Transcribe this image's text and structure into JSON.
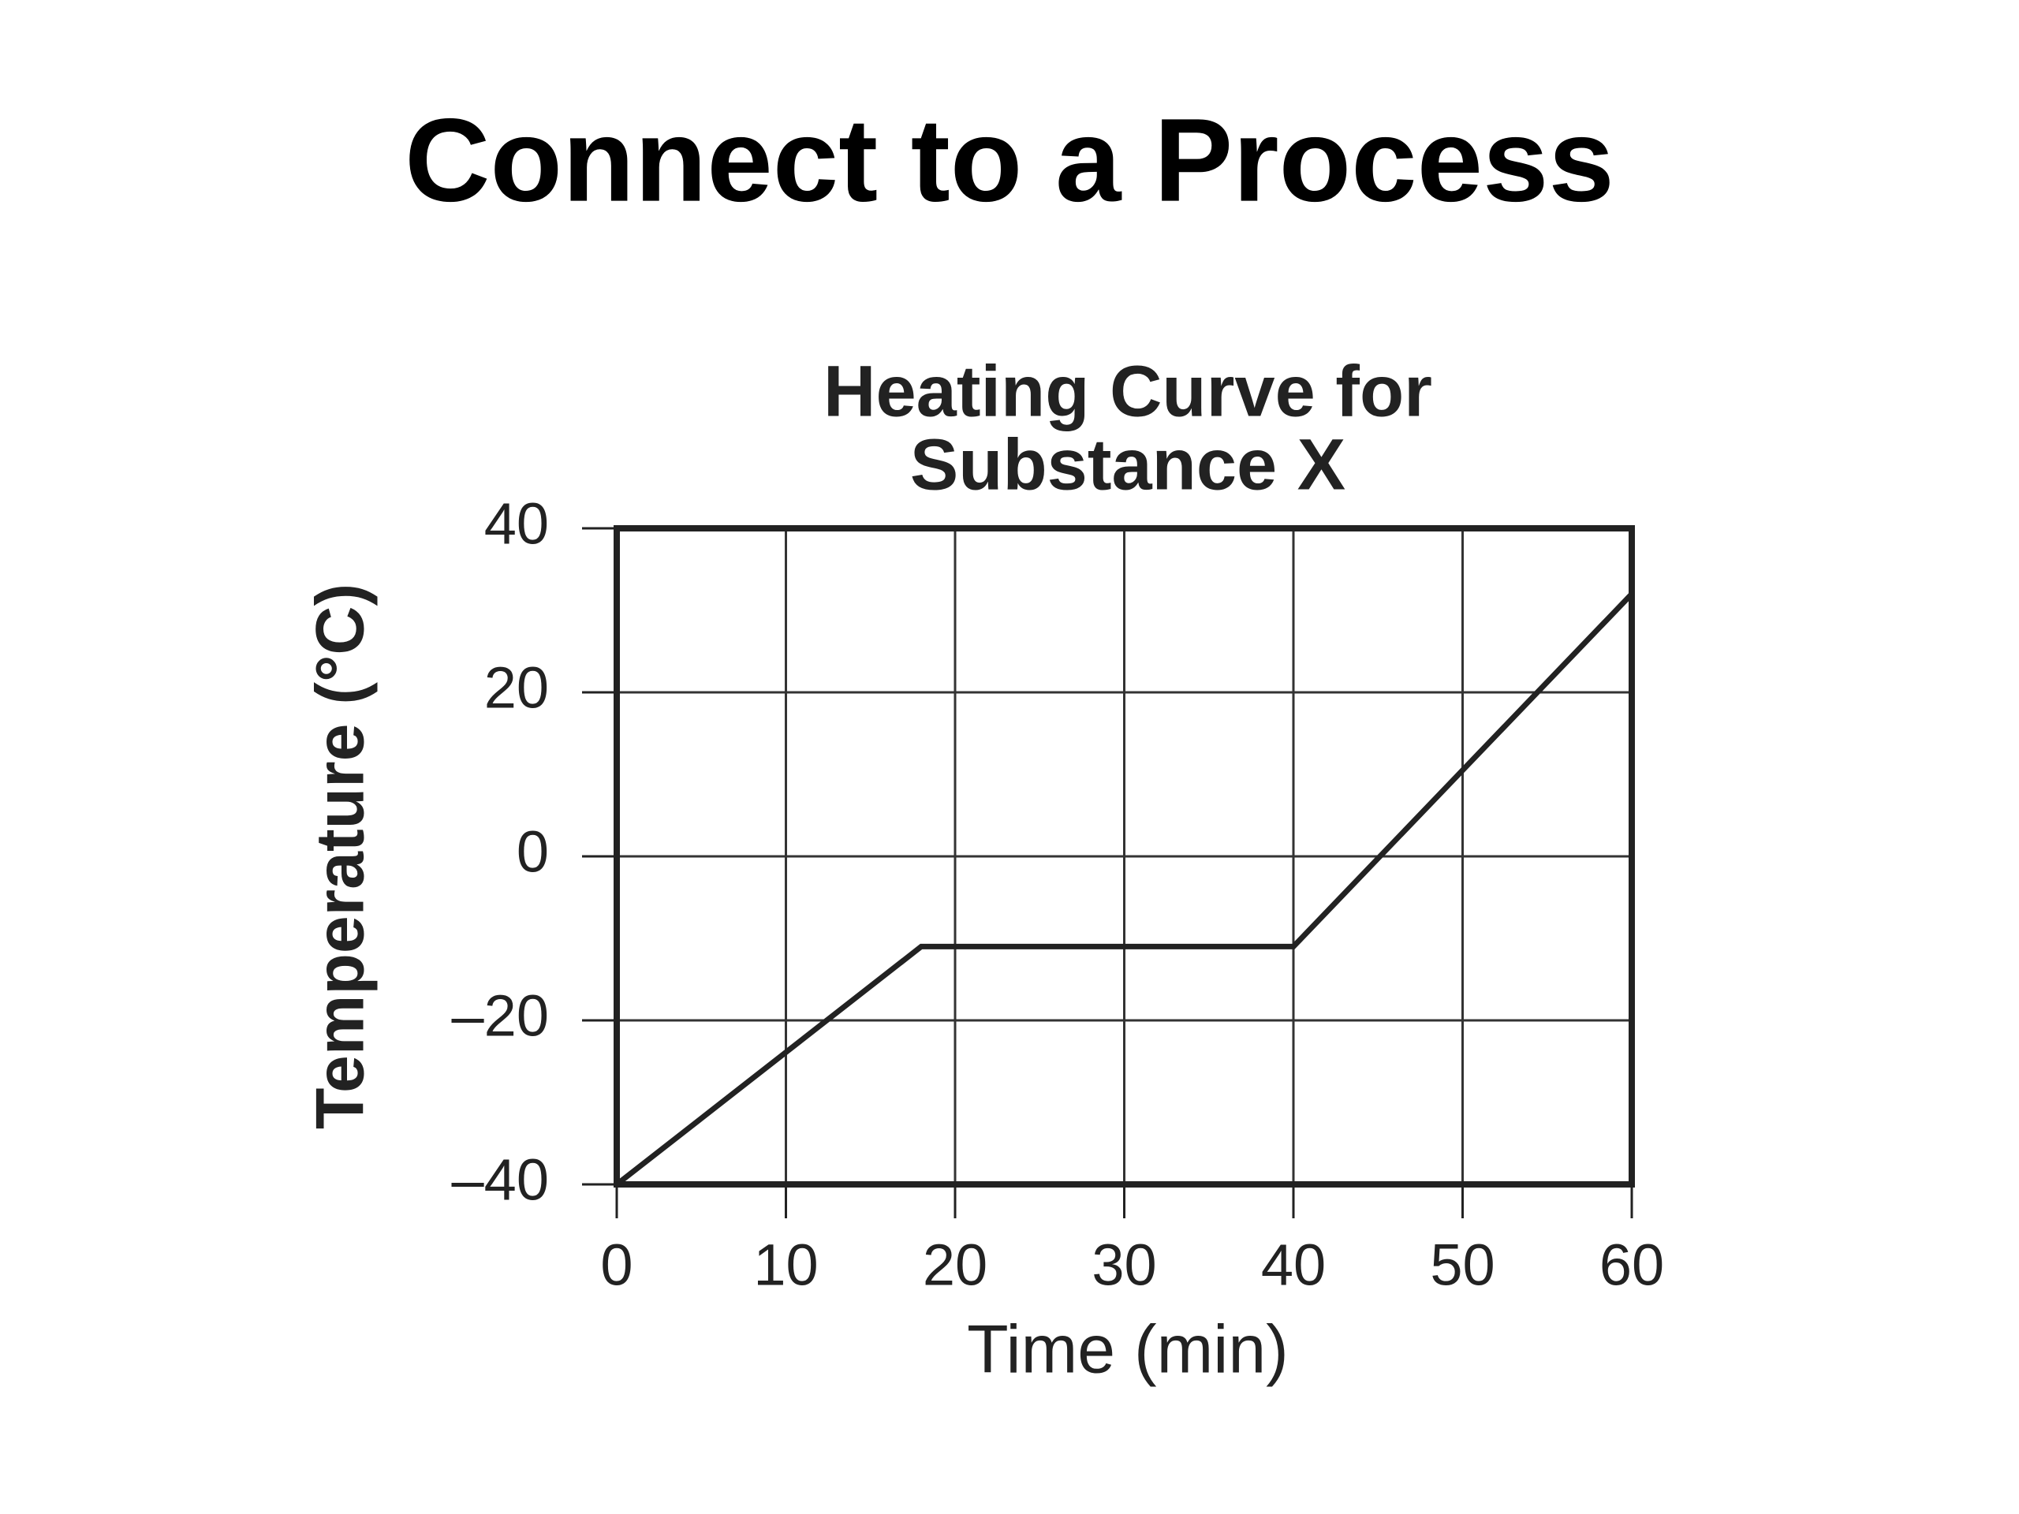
{
  "title": "Connect to a Process",
  "chart_data": {
    "type": "line",
    "title": [
      "Heating Curve for",
      "Substance X"
    ],
    "x_label": "Time (min)",
    "y_label": "Temperature (°C)",
    "x": [
      0,
      18,
      40,
      60
    ],
    "series": [
      {
        "color": "#222222",
        "values": [
          -40,
          -11,
          -11,
          32
        ]
      }
    ],
    "xlim": [
      0,
      60
    ],
    "xticks": [
      0,
      10,
      20,
      30,
      40,
      50,
      60
    ],
    "ylim": [
      -40,
      40
    ],
    "yticks": [
      {
        "value": -40,
        "label": "–40"
      },
      {
        "value": -20,
        "label": "–20"
      },
      0,
      20,
      40
    ],
    "grid": true
  }
}
